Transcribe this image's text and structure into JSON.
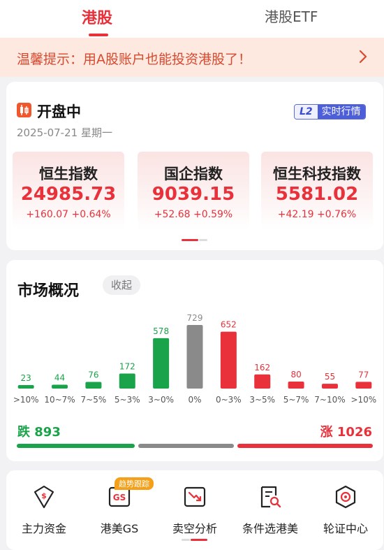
{
  "tabs": {
    "active": "港股",
    "etf": "港股ETF"
  },
  "notice": {
    "text": "温馨提示：用A股账户也能投资港股了！"
  },
  "market_status": {
    "label": "开盘中",
    "date": "2025-07-21 星期一",
    "badge_l2": "L2",
    "badge_realtime": "实时行情"
  },
  "indices": [
    {
      "name": "恒生指数",
      "value": "24985.73",
      "change": "+160.07 +0.64%"
    },
    {
      "name": "国企指数",
      "value": "9039.15",
      "change": "+52.68 +0.59%"
    },
    {
      "name": "恒生科技指数",
      "value": "5581.02",
      "change": "+42.19 +0.76%"
    }
  ],
  "market_overview": {
    "title": "市场概况",
    "collapse_label": "收起",
    "down_label": "跌 893",
    "up_label": "涨 1026",
    "ratio": {
      "down": 893,
      "flat": 729,
      "up": 1026
    }
  },
  "chart_data": {
    "type": "bar",
    "categories": [
      ">10%",
      "10~7%",
      "7~5%",
      "5~3%",
      "3~0%",
      "0%",
      "0~3%",
      "3~5%",
      "5~7%",
      "7~10%",
      ">10%"
    ],
    "values": [
      23,
      44,
      76,
      172,
      578,
      729,
      652,
      162,
      80,
      55,
      77
    ],
    "bar_colors": [
      "#1aa34a",
      "#1aa34a",
      "#1aa34a",
      "#1aa34a",
      "#1aa34a",
      "#8a8a8a",
      "#e8313a",
      "#e8313a",
      "#e8313a",
      "#e8313a",
      "#e8313a"
    ],
    "ylim": [
      0,
      729
    ]
  },
  "tools": [
    {
      "label": "主力资金",
      "icon": "dollar-shield-icon"
    },
    {
      "label": "港美GS",
      "icon": "gs-icon",
      "badge": "趋势跟踪"
    },
    {
      "label": "卖空分析",
      "icon": "short-chart-icon"
    },
    {
      "label": "条件选港美",
      "icon": "document-search-icon"
    },
    {
      "label": "轮证中心",
      "icon": "warrant-icon"
    }
  ],
  "colors": {
    "accent": "#e8313a",
    "down": "#1aa34a",
    "flat": "#8a8a8a"
  }
}
